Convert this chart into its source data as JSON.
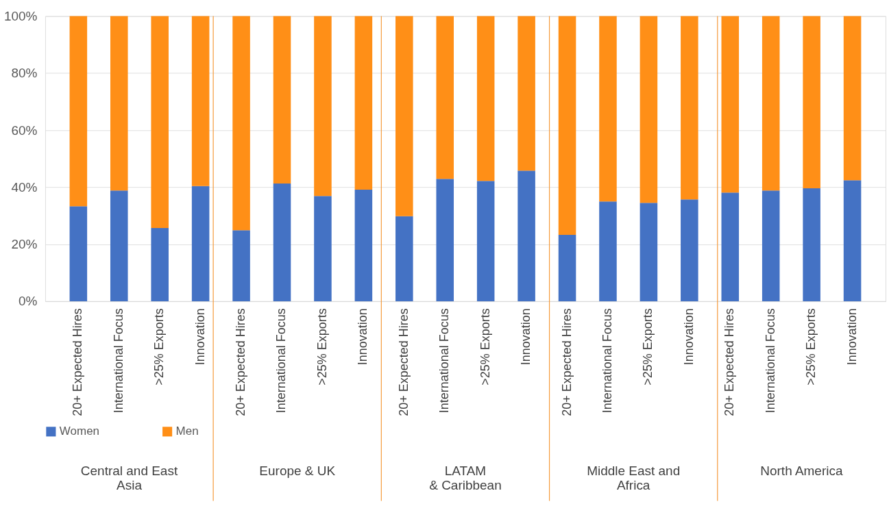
{
  "chart_data": {
    "type": "bar",
    "stacked": true,
    "categories": [
      "20+ Expected Hires",
      "International Focus",
      ">25% Exports",
      "Innovation",
      "20+ Expected Hires",
      "International Focus",
      ">25% Exports",
      "Innovation",
      "20+ Expected Hires",
      "International Focus",
      ">25% Exports",
      "Innovation",
      "20+ Expected Hires",
      "International Focus",
      ">25% Exports",
      "Innovation",
      "20+ Expected Hires",
      "International Focus",
      ">25% Exports",
      "Innovation"
    ],
    "series": [
      {
        "name": "Women",
        "color": "#4472c4",
        "values": [
          33.3,
          38.8,
          25.7,
          40.4,
          24.9,
          41.3,
          36.9,
          39.1,
          29.8,
          42.9,
          42.2,
          45.8,
          23.3,
          35.0,
          34.5,
          35.7,
          38.1,
          38.8,
          39.6,
          42.4
        ]
      },
      {
        "name": "Men",
        "color": "#ff8f17",
        "values": [
          66.7,
          61.2,
          74.3,
          59.6,
          75.1,
          58.7,
          63.1,
          60.9,
          70.2,
          57.1,
          57.8,
          54.2,
          76.7,
          65.0,
          65.5,
          64.3,
          61.9,
          61.2,
          60.4,
          57.6
        ]
      }
    ],
    "annotations": [
      "Central and East\nAsia",
      "Europe & UK",
      "LATAM\n& Caribbean",
      "Middle East and\nAfrica",
      "North America"
    ],
    "ylim": [
      0,
      100
    ],
    "yticks": [
      {
        "value": 0,
        "label": "0%"
      },
      {
        "value": 20,
        "label": "20%"
      },
      {
        "value": 40,
        "label": "40%"
      },
      {
        "value": 60,
        "label": "60%"
      },
      {
        "value": 80,
        "label": "80%"
      },
      {
        "value": 100,
        "label": "100%"
      }
    ],
    "grid": "y",
    "legend": "bottom"
  }
}
